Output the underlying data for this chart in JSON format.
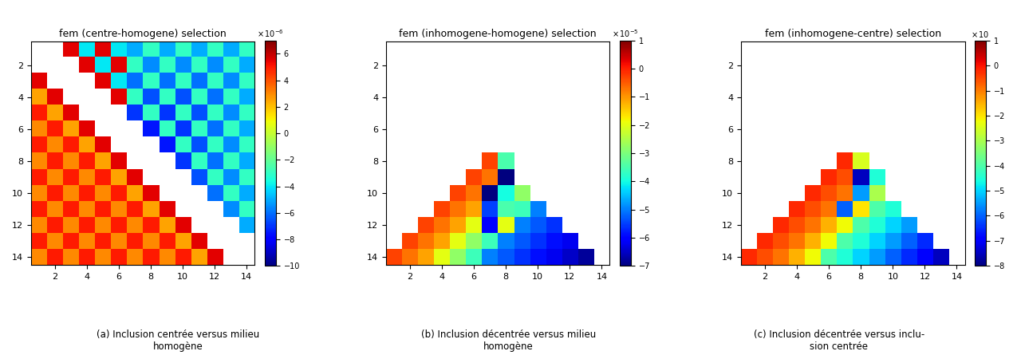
{
  "titles": [
    "fem (centre-homogene) selection",
    "fem (inhomogene-homogene) selection",
    "fem (inhomogene-centre) selection"
  ],
  "colorbars": [
    {
      "exp_text": "x 10^{-6}",
      "ticks": [
        6,
        4,
        2,
        0,
        -2,
        -4,
        -6,
        -8,
        -10
      ],
      "vmin": -10,
      "vmax": 7
    },
    {
      "exp_text": "x 10^{-5}",
      "ticks": [
        1,
        0,
        -1,
        -2,
        -3,
        -4,
        -5,
        -6,
        -7
      ],
      "vmin": -7,
      "vmax": 1
    },
    {
      "exp_text": "x 10",
      "ticks": [
        1,
        0,
        -1,
        -2,
        -3,
        -4,
        -5,
        -6,
        -7,
        -8
      ],
      "vmin": -8,
      "vmax": 1
    }
  ],
  "captions": [
    "(a) Inclusion centrée versus milieu\nhomogène",
    "(b) Inclusion décentrée versus milieu\nhomogène",
    "(c) Inclusion décentrée versus inclu-\nsion centrée"
  ],
  "n": 14,
  "figsize": [
    12.75,
    4.5
  ],
  "dpi": 100
}
